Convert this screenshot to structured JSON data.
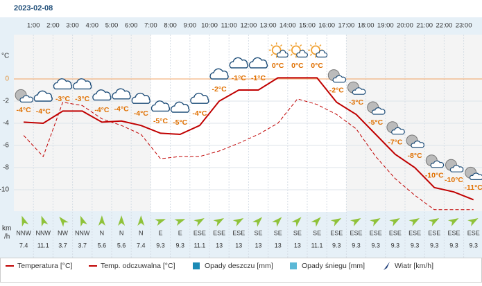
{
  "chart_data": {
    "type": "line",
    "date": "2023-02-08",
    "hour_labels": [
      "1:00",
      "2:00",
      "3:00",
      "4:00",
      "5:00",
      "6:00",
      "7:00",
      "8:00",
      "9:00",
      "10:00",
      "11:00",
      "12:00",
      "13:00",
      "14:00",
      "15:00",
      "16:00",
      "17:00",
      "18:00",
      "19:00",
      "20:00",
      "21:00",
      "22:00",
      "23:00"
    ],
    "y_unit": "°C",
    "ylim": [
      -12,
      4
    ],
    "yticks": [
      0,
      -2,
      -4,
      -6,
      -8,
      -10
    ],
    "grid": true,
    "series": [
      {
        "name": "Temperatura [°C]",
        "color": "#c00000",
        "style": "solid",
        "values": [
          -3.9,
          -4.0,
          -2.9,
          -2.9,
          -3.9,
          -3.8,
          -4.2,
          -4.9,
          -5.0,
          -4.2,
          -2.0,
          -1.0,
          -1.0,
          0.1,
          0.1,
          0.1,
          -2.1,
          -3.2,
          -5.0,
          -6.8,
          -8.0,
          -9.8,
          -10.2,
          -10.9
        ],
        "value_labels": [
          "-4°C",
          "-4°C",
          "-3°C",
          "-3°C",
          "-4°C",
          "-4°C",
          "-4°C",
          "-5°C",
          "-5°C",
          "-4°C",
          "-2°C",
          "-1°C",
          "-1°C",
          "0°C",
          "0°C",
          "0°C",
          "-2°C",
          "-3°C",
          "-5°C",
          "-7°C",
          "-8°C",
          "-10°C",
          "-10°C",
          "-11°C"
        ]
      },
      {
        "name": "Temp. odczuwalna [°C]",
        "color": "#c00000",
        "style": "dashed",
        "values": [
          -5.1,
          -7.0,
          -2.1,
          -2.4,
          -3.6,
          -4.2,
          -5.0,
          -7.2,
          -7.0,
          -7.0,
          -6.5,
          -5.8,
          -5.0,
          -4.0,
          -1.8,
          -2.3,
          -3.2,
          -4.5,
          -7.0,
          -9.0,
          -10.5,
          -11.8,
          -11.8,
          -11.8
        ]
      }
    ],
    "wind_unit": [
      "km",
      "/h"
    ],
    "wind_direction": [
      "NNW",
      "NNW",
      "NW",
      "NNW",
      "N",
      "N",
      "N",
      "E",
      "E",
      "ESE",
      "ESE",
      "ESE",
      "SE",
      "SE",
      "SE",
      "SE",
      "ESE",
      "ESE",
      "ESE",
      "ESE",
      "ESE",
      "ESE",
      "ESE",
      "ESE"
    ],
    "wind_speed": [
      7.4,
      11.1,
      3.7,
      3.7,
      5.6,
      5.6,
      7.4,
      9.3,
      9.3,
      11.1,
      13,
      13,
      13,
      13,
      13,
      11.1,
      9.3,
      9.3,
      9.3,
      9.3,
      9.3,
      9.3,
      9.3,
      9.3
    ],
    "legend": [
      {
        "label": "Temperatura [°C]"
      },
      {
        "label": "Temp. odczuwalna [°C]"
      },
      {
        "label": "Opady deszczu [mm]",
        "color": "#1b8ab5"
      },
      {
        "label": "Opady śniegu [mm]",
        "color": "#5bb8d6"
      },
      {
        "label": "Wiatr [km/h]",
        "color": "#1f3f7a"
      }
    ]
  }
}
